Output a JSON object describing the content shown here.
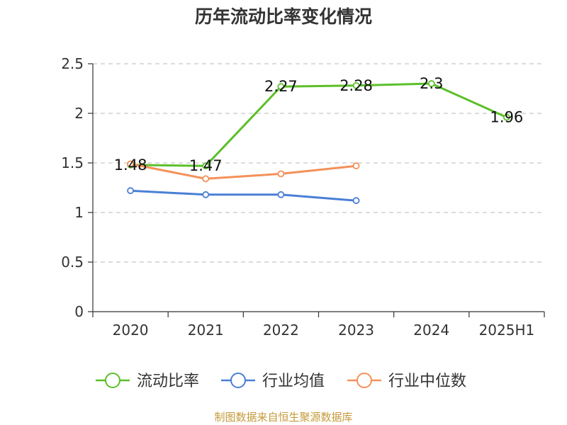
{
  "chart_data": {
    "type": "line",
    "title": "历年流动比率变化情况",
    "categories": [
      "2020",
      "2021",
      "2022",
      "2023",
      "2024",
      "2025H1"
    ],
    "ylim": [
      0,
      2.5
    ],
    "yticks": [
      "0",
      "0.5",
      "1",
      "1.5",
      "2",
      "2.5"
    ],
    "grid": true,
    "legend_position": "bottom",
    "series": [
      {
        "name": "流动比率",
        "color": "#5cbf2a",
        "values": [
          1.48,
          1.47,
          2.27,
          2.28,
          2.3,
          1.96
        ],
        "labels": [
          "1.48",
          "1.47",
          "2.27",
          "2.28",
          "2.3",
          "1.96"
        ]
      },
      {
        "name": "行业均值",
        "color": "#4a7fd6",
        "values": [
          1.22,
          1.18,
          1.18,
          1.12,
          null,
          null
        ]
      },
      {
        "name": "行业中位数",
        "color": "#f4915a",
        "values": [
          1.49,
          1.34,
          1.39,
          1.47,
          null,
          null
        ]
      }
    ]
  },
  "footer": {
    "source": "制图数据来自恒生聚源数据库"
  }
}
